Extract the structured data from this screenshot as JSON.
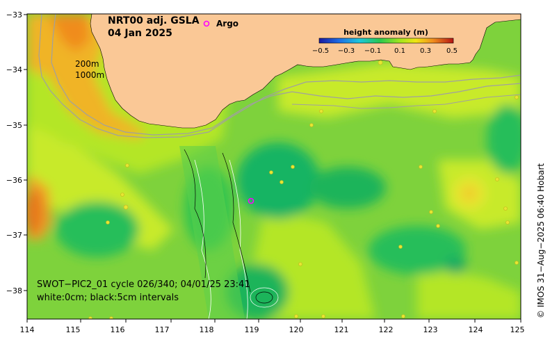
{
  "title": {
    "line1": "NRT00 adj. GSLA",
    "line2": "04 Jan 2025"
  },
  "legend": {
    "argo_label": "Argo",
    "argo_color": "#ff00ff",
    "colorbar_title": "height anomaly (m)",
    "colorbar_ticks": [
      "−0.5",
      "−0.3",
      "−0.1",
      "0.1",
      "0.3",
      "0.5"
    ],
    "colorbar_colors": [
      "#1a1aa0",
      "#1e5fe0",
      "#1eb4e6",
      "#2ecc8a",
      "#3cc83c",
      "#a0e61e",
      "#e6e614",
      "#f0a01e",
      "#e65a14",
      "#b41414"
    ]
  },
  "depth_labels": [
    "200m",
    "1000m"
  ],
  "swot": {
    "line1": "SWOT−PIC2_01 cycle 026/340; 04/01/25 23:41",
    "line2": "white:0cm; black:5cm intervals"
  },
  "credit": "© IMOS 31−Aug−2025 06:40 Hobart",
  "axes": {
    "x_ticks": [
      "114",
      "115",
      "116",
      "117",
      "118",
      "119",
      "120",
      "121",
      "122",
      "123",
      "124",
      "125"
    ],
    "y_ticks": [
      "−33",
      "−34",
      "−35",
      "−36",
      "−37",
      "−38"
    ]
  },
  "colors": {
    "land": "#fac896",
    "ocean_base": "#7ed23c",
    "contour": "#a0a0a0"
  }
}
